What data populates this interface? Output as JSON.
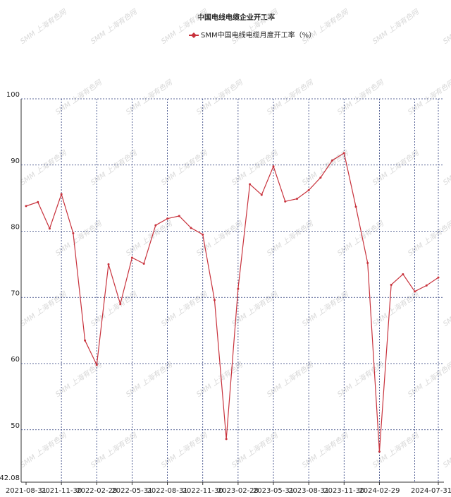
{
  "chart_data": {
    "type": "line",
    "title": "中国电线电缆企业开工率",
    "watermark": "SMM 上海有色网",
    "categories": [
      "2021-08-31",
      null,
      null,
      "2021-11-30",
      null,
      null,
      "2022-02-28",
      null,
      null,
      "2022-05-31",
      null,
      null,
      "2022-08-31",
      null,
      null,
      "2022-11-30",
      null,
      null,
      "2023-02-28",
      null,
      null,
      "2023-05-31",
      null,
      null,
      "2023-08-31",
      null,
      null,
      "2023-11-30",
      null,
      null,
      "2024-02-29",
      null,
      null,
      null,
      null,
      "2024-07-31"
    ],
    "series": [
      {
        "name": "SMM中国电线电缆月度开工率（%）",
        "color": "#c8323c",
        "values": [
          83.8,
          84.4,
          80.4,
          85.6,
          79.7,
          63.5,
          59.8,
          75.0,
          69.0,
          76.0,
          75.1,
          80.9,
          81.9,
          82.3,
          80.5,
          79.5,
          69.6,
          48.6,
          71.3,
          87.1,
          85.5,
          89.8,
          84.5,
          84.9,
          86.2,
          88.1,
          90.7,
          91.8,
          83.7,
          75.2,
          46.7,
          71.9,
          73.5,
          70.9,
          71.8,
          73.0
        ]
      }
    ],
    "ylim": [
      42.08,
      100
    ],
    "yticks": [
      42.08,
      50,
      60,
      70,
      80,
      90,
      100
    ],
    "grid": true
  }
}
